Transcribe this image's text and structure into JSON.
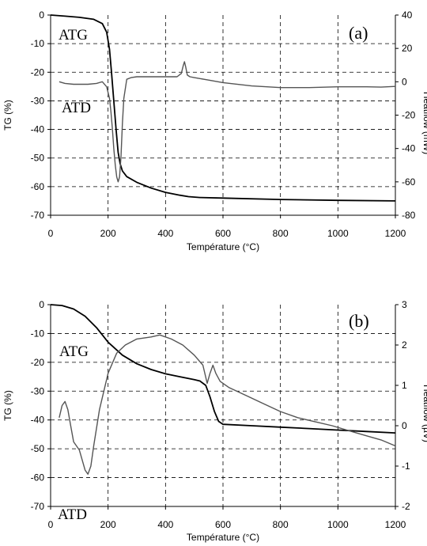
{
  "chart_data": [
    {
      "type": "line",
      "panel_label": "(a)",
      "xlabel": "Température (°C)",
      "ylabel": "TG (%)",
      "y2label": "Heatflow (mW)",
      "xlim": [
        0,
        1200
      ],
      "ylim": [
        -70,
        0
      ],
      "y2lim": [
        -80,
        40
      ],
      "x_ticks": [
        0,
        200,
        400,
        600,
        800,
        1000,
        1200
      ],
      "y_ticks": [
        0,
        -10,
        -20,
        -30,
        -40,
        -50,
        -60,
        -70
      ],
      "y2_ticks": [
        40,
        20,
        0,
        -20,
        -40,
        -60,
        -80
      ],
      "grid": true,
      "series": [
        {
          "name": "ATG",
          "axis": "left",
          "color": "#000000",
          "x": [
            0,
            50,
            100,
            150,
            180,
            195,
            205,
            212,
            220,
            228,
            235,
            242,
            250,
            265,
            300,
            350,
            400,
            450,
            480,
            520,
            600,
            800,
            1000,
            1200
          ],
          "y": [
            0,
            -0.4,
            -0.8,
            -1.5,
            -3,
            -6,
            -12,
            -20,
            -30,
            -40,
            -48,
            -52,
            -54.5,
            -56.5,
            -58.5,
            -60.5,
            -62,
            -63,
            -63.5,
            -63.8,
            -64,
            -64.5,
            -64.8,
            -65
          ]
        },
        {
          "name": "ATD",
          "axis": "right",
          "color": "#555555",
          "x": [
            30,
            50,
            80,
            100,
            130,
            160,
            180,
            195,
            205,
            210,
            215,
            220,
            225,
            230,
            235,
            240,
            245,
            250,
            255,
            265,
            280,
            300,
            350,
            400,
            440,
            455,
            462,
            466,
            470,
            476,
            485,
            500,
            550,
            600,
            700,
            800,
            900,
            1000,
            1100,
            1150,
            1200
          ],
          "y": [
            0,
            -1,
            -1.5,
            -1.5,
            -1.5,
            -1,
            0,
            -3,
            -10,
            -18,
            -28,
            -40,
            -50,
            -57,
            -60,
            -57,
            -45,
            -25,
            -10,
            1.5,
            2.5,
            3,
            3,
            3,
            3,
            5,
            10,
            12,
            9,
            4,
            3,
            2.5,
            1,
            -0.5,
            -2.5,
            -3.5,
            -3.5,
            -3,
            -3,
            -3.2,
            -2.8
          ]
        }
      ]
    },
    {
      "type": "line",
      "panel_label": "(b)",
      "xlabel": "Température (°C)",
      "ylabel": "TG (%)",
      "y2label": "Heatflow (µV)",
      "xlim": [
        0,
        1200
      ],
      "ylim": [
        -70,
        0
      ],
      "y2lim": [
        -2,
        3
      ],
      "x_ticks": [
        0,
        200,
        400,
        600,
        800,
        1000,
        1200
      ],
      "y_ticks": [
        0,
        -10,
        -20,
        -30,
        -40,
        -50,
        -60,
        -70
      ],
      "y2_ticks": [
        3,
        2,
        1,
        0,
        -1,
        -2
      ],
      "grid": true,
      "series": [
        {
          "name": "ATG",
          "axis": "left",
          "color": "#000000",
          "x": [
            0,
            40,
            80,
            120,
            160,
            200,
            250,
            300,
            350,
            400,
            450,
            500,
            520,
            540,
            555,
            570,
            585,
            600,
            700,
            800,
            900,
            1000,
            1100,
            1200
          ],
          "y": [
            0,
            -0.3,
            -1.5,
            -4,
            -8,
            -13,
            -17.5,
            -20.5,
            -22.5,
            -24,
            -25,
            -26,
            -26.5,
            -28,
            -32,
            -37,
            -40.5,
            -41.5,
            -42,
            -42.5,
            -43,
            -43.5,
            -44,
            -44.5
          ]
        },
        {
          "name": "ATD",
          "axis": "right",
          "color": "#555555",
          "x": [
            30,
            40,
            50,
            60,
            70,
            80,
            100,
            120,
            130,
            140,
            150,
            170,
            200,
            230,
            260,
            300,
            350,
            380,
            420,
            460,
            500,
            530,
            545,
            555,
            565,
            575,
            590,
            620,
            680,
            740,
            800,
            860,
            920,
            980,
            1050,
            1100,
            1150,
            1200
          ],
          "y": [
            0.2,
            0.5,
            0.6,
            0.4,
            0,
            -0.4,
            -0.6,
            -1.1,
            -1.2,
            -1.0,
            -0.5,
            0.4,
            1.3,
            1.8,
            2.0,
            2.15,
            2.2,
            2.25,
            2.15,
            2.0,
            1.75,
            1.5,
            1.05,
            1.3,
            1.5,
            1.3,
            1.1,
            0.95,
            0.75,
            0.55,
            0.35,
            0.2,
            0.1,
            0.0,
            -0.15,
            -0.25,
            -0.35,
            -0.5
          ]
        }
      ]
    }
  ]
}
